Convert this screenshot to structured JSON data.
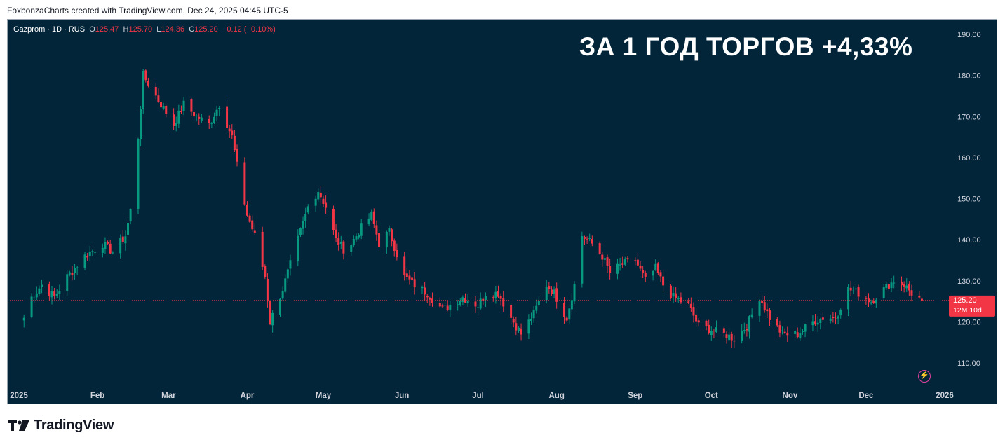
{
  "header": {
    "attribution": "FoxbonzaCharts created with TradingView.com, Dec 24, 2025 04:45 UTC-5"
  },
  "legend": {
    "symbol": "Gazprom · 1D · RUS",
    "o_label": "O",
    "o_value": "125.47",
    "h_label": "H",
    "h_value": "125.70",
    "l_label": "L",
    "l_value": "124.36",
    "c_label": "C",
    "c_value": "125.20",
    "change": "−0.12 (−0.10%)"
  },
  "banner": "ЗА 1 ГОД ТОРГОВ +4,33%",
  "price_badge": {
    "price": "125.20",
    "countdown": "12M 10d"
  },
  "footer": {
    "brand": "TradingView"
  },
  "colors": {
    "background": "#02253a",
    "up": "#089981",
    "down": "#f23645",
    "axis_text": "#d1d4dc",
    "banner": "#ffffff"
  },
  "chart_data": {
    "type": "candlestick",
    "yticks": [
      "190.00",
      "180.00",
      "170.00",
      "160.00",
      "150.00",
      "140.00",
      "130.00",
      "120.00",
      "110.00"
    ],
    "ylim": [
      105,
      192
    ],
    "x_labels": [
      "2025",
      "Feb",
      "Mar",
      "Apr",
      "May",
      "Jun",
      "Jul",
      "Aug",
      "Sep",
      "Oct",
      "Nov",
      "Dec",
      "2026"
    ],
    "last_price": 125.2,
    "close_path": [
      [
        "2025-01-03",
        121
      ],
      [
        "2025-01-06",
        126
      ],
      [
        "2025-01-10",
        129
      ],
      [
        "2025-01-15",
        126
      ],
      [
        "2025-01-20",
        131
      ],
      [
        "2025-01-27",
        136
      ],
      [
        "2025-02-03",
        139
      ],
      [
        "2025-02-07",
        137
      ],
      [
        "2025-02-12",
        141
      ],
      [
        "2025-02-14",
        147
      ],
      [
        "2025-02-17",
        165
      ],
      [
        "2025-02-19",
        180
      ],
      [
        "2025-02-24",
        175
      ],
      [
        "2025-03-03",
        168
      ],
      [
        "2025-03-07",
        173
      ],
      [
        "2025-03-12",
        170
      ],
      [
        "2025-03-17",
        168
      ],
      [
        "2025-03-21",
        173
      ],
      [
        "2025-03-26",
        165
      ],
      [
        "2025-03-28",
        158
      ],
      [
        "2025-04-01",
        146
      ],
      [
        "2025-04-04",
        141
      ],
      [
        "2025-04-08",
        131
      ],
      [
        "2025-04-10",
        120
      ],
      [
        "2025-04-15",
        128
      ],
      [
        "2025-04-22",
        142
      ],
      [
        "2025-04-25",
        148
      ],
      [
        "2025-04-29",
        152
      ],
      [
        "2025-05-02",
        148
      ],
      [
        "2025-05-06",
        140
      ],
      [
        "2025-05-10",
        137
      ],
      [
        "2025-05-16",
        143
      ],
      [
        "2025-05-20",
        146
      ],
      [
        "2025-05-23",
        139
      ],
      [
        "2025-05-27",
        142
      ],
      [
        "2025-06-02",
        131
      ],
      [
        "2025-06-06",
        129
      ],
      [
        "2025-06-11",
        127
      ],
      [
        "2025-06-17",
        123
      ],
      [
        "2025-06-25",
        126
      ],
      [
        "2025-07-01",
        124
      ],
      [
        "2025-07-04",
        127
      ],
      [
        "2025-07-09",
        127
      ],
      [
        "2025-07-14",
        121
      ],
      [
        "2025-07-18",
        117
      ],
      [
        "2025-07-23",
        122
      ],
      [
        "2025-07-28",
        129
      ],
      [
        "2025-07-31",
        127
      ],
      [
        "2025-08-05",
        121
      ],
      [
        "2025-08-08",
        129
      ],
      [
        "2025-08-11",
        141
      ],
      [
        "2025-08-15",
        139
      ],
      [
        "2025-08-19",
        136
      ],
      [
        "2025-08-22",
        132
      ],
      [
        "2025-08-27",
        134
      ],
      [
        "2025-09-01",
        135
      ],
      [
        "2025-09-05",
        130
      ],
      [
        "2025-09-09",
        133
      ],
      [
        "2025-09-12",
        129
      ],
      [
        "2025-09-16",
        126
      ],
      [
        "2025-09-22",
        124
      ],
      [
        "2025-09-26",
        119
      ],
      [
        "2025-10-01",
        118
      ],
      [
        "2025-10-06",
        117
      ],
      [
        "2025-10-10",
        116
      ],
      [
        "2025-10-15",
        119
      ],
      [
        "2025-10-20",
        126
      ],
      [
        "2025-10-24",
        121
      ],
      [
        "2025-10-29",
        117
      ],
      [
        "2025-11-04",
        117
      ],
      [
        "2025-11-10",
        120
      ],
      [
        "2025-11-14",
        121
      ],
      [
        "2025-11-19",
        121
      ],
      [
        "2025-11-24",
        128
      ],
      [
        "2025-11-28",
        127
      ],
      [
        "2025-12-03",
        125
      ],
      [
        "2025-12-08",
        128
      ],
      [
        "2025-12-12",
        130
      ],
      [
        "2025-12-16",
        129
      ],
      [
        "2025-12-19",
        127
      ],
      [
        "2025-12-23",
        125.2
      ]
    ]
  }
}
